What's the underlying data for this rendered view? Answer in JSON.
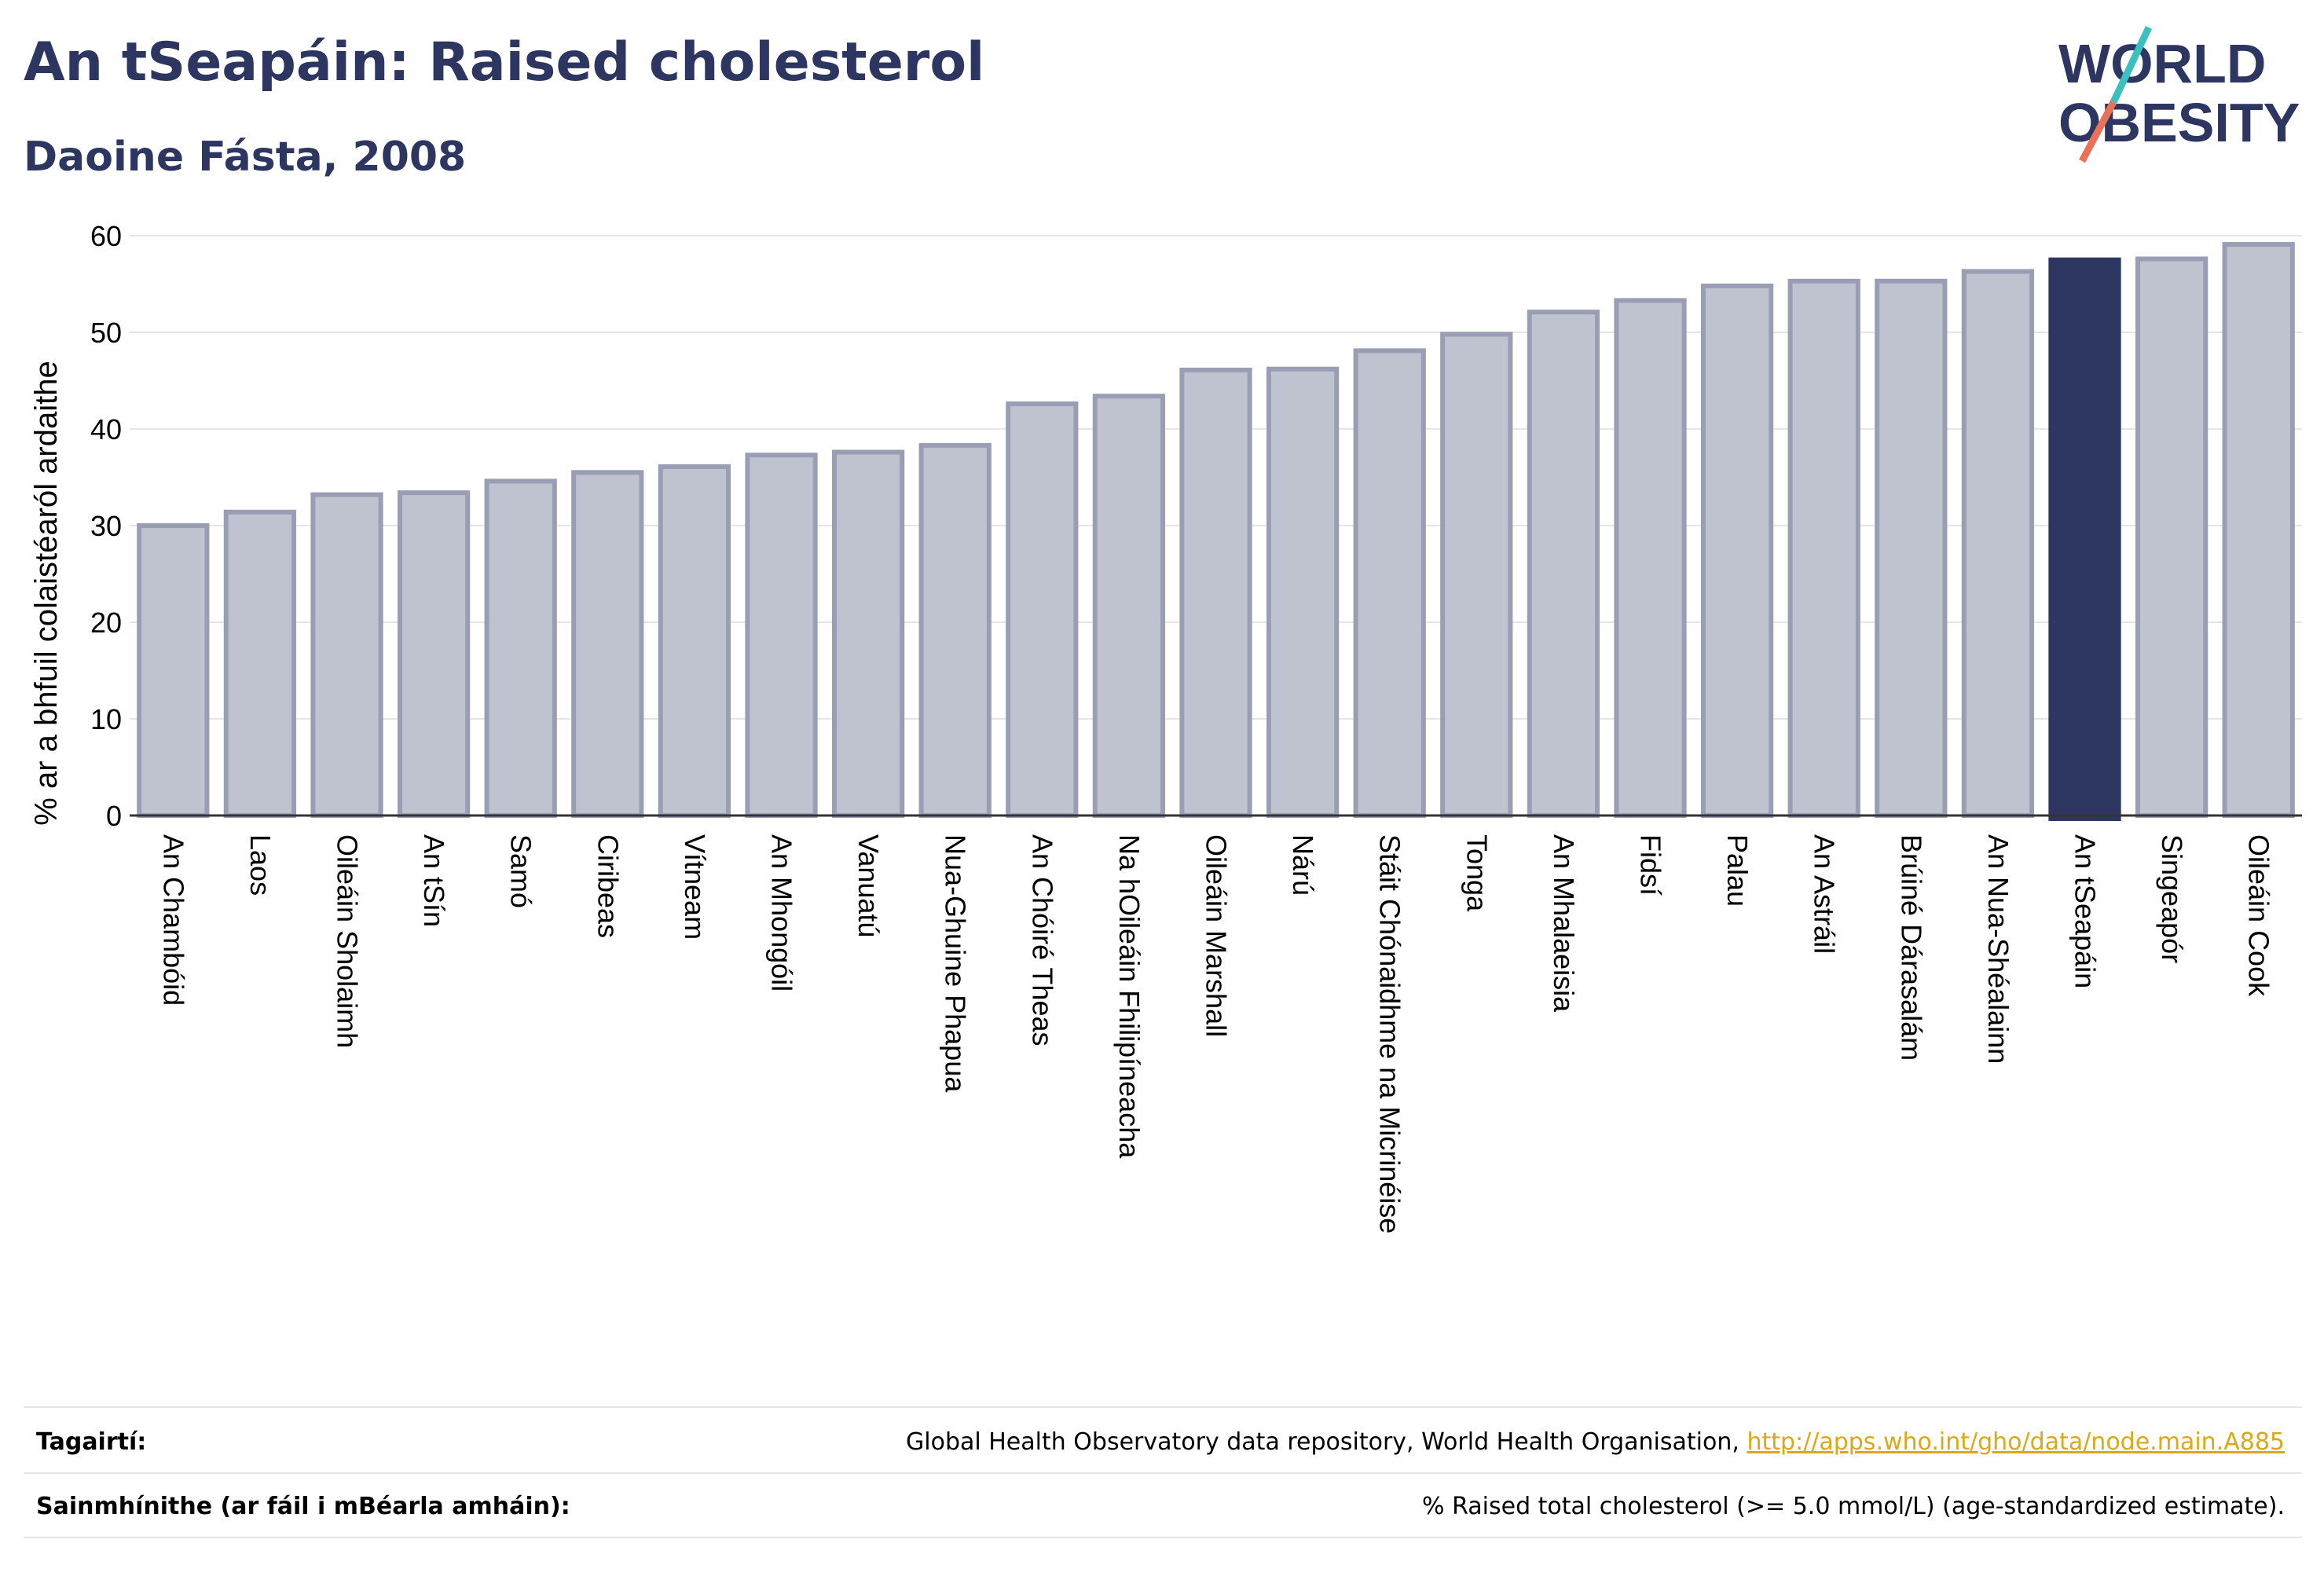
{
  "header": {
    "title": "An tSeapáin: Raised cholesterol",
    "subtitle": "Daoine Fásta, 2008"
  },
  "logo": {
    "line1": "WORLD",
    "line2": "OBESITY",
    "colors": {
      "text": "#2d3561",
      "slash_top": "#3bbfbf",
      "slash_bottom": "#e8715a"
    }
  },
  "chart_data": {
    "type": "bar",
    "ylabel": "% ar a bhfuil colaistéaról ardaithe",
    "ylim": [
      0,
      60
    ],
    "yticks": [
      0,
      10,
      20,
      30,
      40,
      50,
      60
    ],
    "grid": true,
    "highlight_category": "An tSeapáin",
    "colors": {
      "bar_fill": "#bfc2cf",
      "bar_stroke": "#9a9eb5",
      "highlight_fill": "#2d3561",
      "gridline": "#e6e6ea",
      "axis": "#333333"
    },
    "categories": [
      "An Chambóid",
      "Laos",
      "Oileáin Sholaimh",
      "An tSín",
      "Samó",
      "Ciribeas",
      "Vítneam",
      "An Mhongóil",
      "Vanuatú",
      "Nua-Ghuine Phapua",
      "An Chóiré Theas",
      "Na hOileáin Fhilipíneacha",
      "Oileáin Marshall",
      "Nárú",
      "Stáit Chónaidhme na Micrinéise",
      "Tonga",
      "An Mhalaeisia",
      "Fidsí",
      "Palau",
      "An Astráil",
      "Brúiné Dárasalám",
      "An Nua-Shéalainn",
      "An tSeapáin",
      "Singeapór",
      "Oileáin Cook"
    ],
    "values": [
      30.0,
      31.4,
      33.2,
      33.4,
      34.6,
      35.5,
      36.1,
      37.3,
      37.6,
      38.3,
      42.6,
      43.4,
      46.1,
      46.2,
      48.1,
      49.8,
      52.1,
      53.3,
      54.8,
      55.3,
      55.3,
      56.3,
      57.5,
      57.6,
      59.1
    ]
  },
  "footer": {
    "references_label": "Tagairtí:",
    "references_text": "Global Health Observatory data repository, World Health Organisation, ",
    "references_link": "http://apps.who.int/gho/data/node.main.A885",
    "definitions_label": "Sainmhínithe (ar fáil i mBéarla amháin):",
    "definitions_text": "% Raised total cholesterol (>= 5.0 mmol/L) (age-standardized estimate)."
  }
}
